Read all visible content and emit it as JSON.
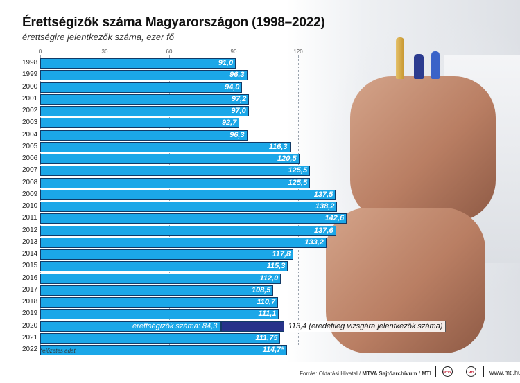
{
  "title": "Érettségizők száma Magyarországon (1998–2022)",
  "subtitle": "érettségire jelentkezők száma, ezer fő",
  "chart_data": {
    "type": "bar",
    "orientation": "horizontal",
    "title": "Érettségizők száma Magyarországon (1998–2022)",
    "subtitle": "érettségire jelentkezők száma, ezer fő",
    "xlim": [
      0,
      150
    ],
    "ticks": [
      0,
      30,
      60,
      90,
      120
    ],
    "grid": true,
    "categories": [
      "1998",
      "1999",
      "2000",
      "2001",
      "2002",
      "2003",
      "2004",
      "2005",
      "2006",
      "2007",
      "2008",
      "2009",
      "2010",
      "2011",
      "2012",
      "2013",
      "2014",
      "2015",
      "2016",
      "2017",
      "2018",
      "2019",
      "2020",
      "2021",
      "2022"
    ],
    "values": [
      91.0,
      96.3,
      94.0,
      97.2,
      97.0,
      92.7,
      96.3,
      116.3,
      120.5,
      125.5,
      125.5,
      137.5,
      138.2,
      142.6,
      137.6,
      133.2,
      117.8,
      115.3,
      112.0,
      108.5,
      110.7,
      111.1,
      84.3,
      111.75,
      114.7
    ],
    "labels": [
      "91,0",
      "96,3",
      "94,0",
      "97,2",
      "97,0",
      "92,7",
      "96,3",
      "116,3",
      "120,5",
      "125,5",
      "125,5",
      "137,5",
      "138,2",
      "142,6",
      "137,6",
      "133,2",
      "117,8",
      "115,3",
      "112,0",
      "108,5",
      "110,7",
      "111,1",
      "84,3",
      "111,75",
      "114,7*"
    ],
    "special_2020": {
      "graduates_label": "érettségizők száma:",
      "graduates_value": 84.3,
      "applicants_value": 113.4,
      "applicants_label": "113,4",
      "applicants_note": "(eredetileg vizsgára jelentkezők száma)",
      "colors": {
        "graduates": "#1ba7e8",
        "applicants": "#27328a"
      }
    }
  },
  "footnote": "*előzetes adat",
  "source": {
    "prefix": "Forrás: Oktatási Hivatal / ",
    "archive": "MTVA Sajtóarchívum",
    "sep": " / ",
    "agency": "MTI"
  },
  "logos": [
    "MTVA",
    "MTI"
  ],
  "site": "www.mti.hu",
  "colors": {
    "bar": "#1ba7e8",
    "bar_border": "#123a66",
    "highlight": "#27328a"
  }
}
